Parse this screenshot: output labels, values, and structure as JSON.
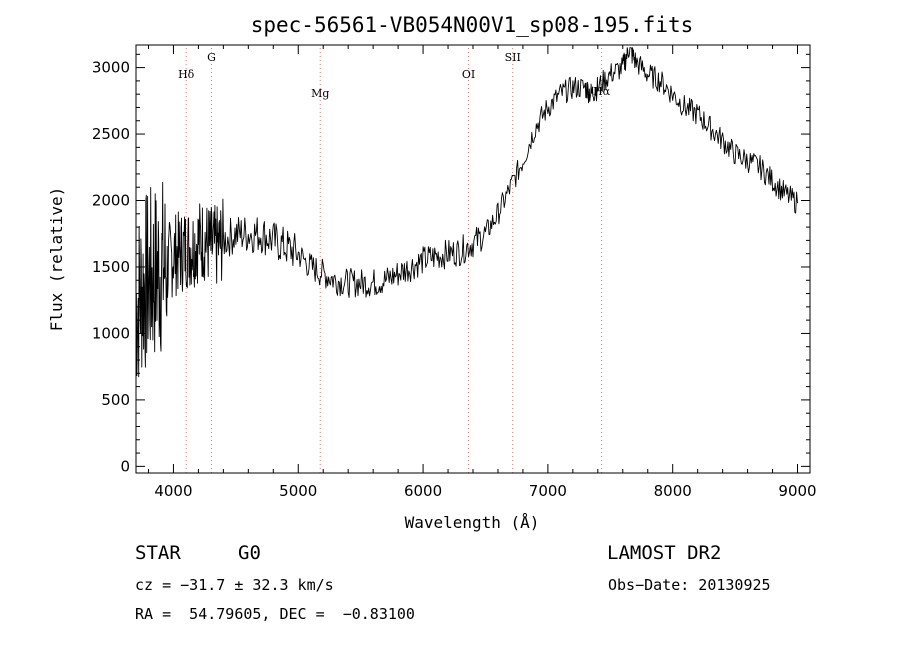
{
  "chart_data": {
    "type": "line",
    "title": "spec-56561-VB054N00V1_sp08-195.fits",
    "xlabel": "Wavelength (Å)",
    "ylabel": "Flux (relative)",
    "xlim": [
      3700,
      9100
    ],
    "ylim": [
      -50,
      3170
    ],
    "x_ticks": [
      4000,
      5000,
      6000,
      7000,
      8000,
      9000
    ],
    "y_ticks": [
      0,
      500,
      1000,
      1500,
      2000,
      2500,
      3000
    ],
    "grid": false,
    "series": [
      {
        "color": "#000000",
        "x": [
          3700,
          3750,
          3800,
          3850,
          3900,
          3950,
          4000,
          4050,
          4100,
          4150,
          4200,
          4250,
          4300,
          4350,
          4400,
          4500,
          4600,
          4700,
          4800,
          4900,
          5000,
          5100,
          5200,
          5300,
          5400,
          5500,
          5600,
          5700,
          5800,
          5900,
          6000,
          6100,
          6200,
          6300,
          6400,
          6500,
          6600,
          6700,
          6800,
          6900,
          7000,
          7100,
          7200,
          7300,
          7350,
          7400,
          7500,
          7600,
          7650,
          7700,
          7800,
          7900,
          8000,
          8100,
          8200,
          8300,
          8400,
          8500,
          8600,
          8700,
          8800,
          8900,
          9000
        ],
        "y": [
          1200,
          1350,
          1400,
          1450,
          1500,
          1500,
          1600,
          1600,
          1650,
          1650,
          1700,
          1700,
          1650,
          1650,
          1700,
          1750,
          1750,
          1750,
          1700,
          1650,
          1600,
          1500,
          1450,
          1400,
          1380,
          1380,
          1380,
          1400,
          1450,
          1500,
          1550,
          1580,
          1600,
          1620,
          1680,
          1750,
          1900,
          2100,
          2300,
          2550,
          2700,
          2800,
          2850,
          2850,
          2800,
          2850,
          2950,
          3000,
          3150,
          3050,
          2950,
          2900,
          2800,
          2700,
          2650,
          2550,
          2450,
          2350,
          2300,
          2250,
          2150,
          2050,
          1980
        ]
      }
    ],
    "lines": [
      {
        "label": "Hδ",
        "x": 4102
      },
      {
        "label": "G",
        "x": 4305
      },
      {
        "label": "Mg",
        "x": 5176
      },
      {
        "label": "OI",
        "x": 6364
      },
      {
        "label": "SII",
        "x": 6718
      },
      {
        "label": "Hα",
        "x": 7430
      }
    ]
  },
  "footer": {
    "object_type": "STAR",
    "subclass": "G0",
    "survey": "LAMOST DR2",
    "cz": "cz = −31.7 ± 32.3 km/s",
    "obs_date": "Obs−Date: 20130925",
    "coords": "RA =  54.79605, DEC =  −0.83100"
  }
}
